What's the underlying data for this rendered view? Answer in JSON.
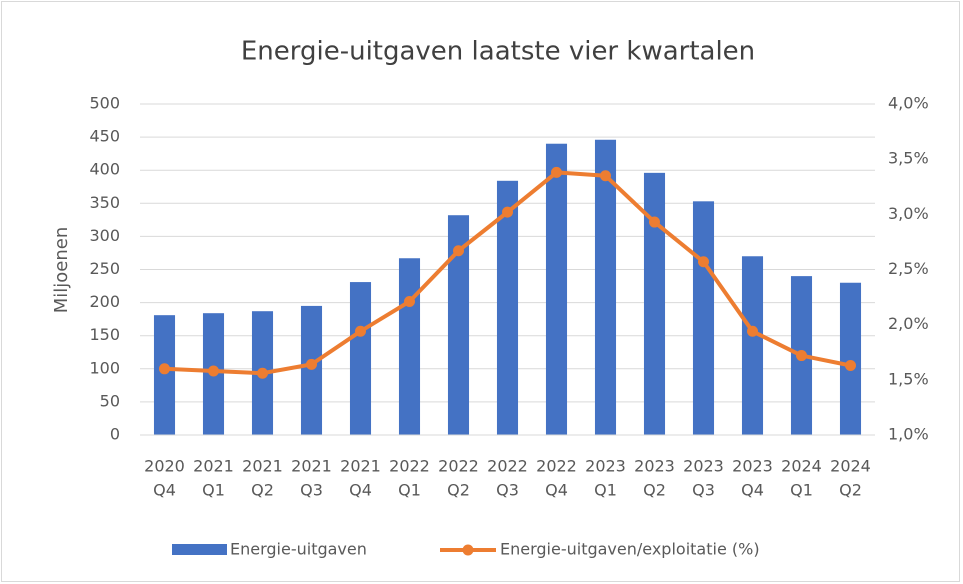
{
  "chart_data": {
    "type": "bar_line",
    "title": "Energie-uitgaven laatste vier kwartalen",
    "ylabel": "Miljoenen",
    "categories": [
      [
        "2020",
        "Q4"
      ],
      [
        "2021",
        "Q1"
      ],
      [
        "2021",
        "Q2"
      ],
      [
        "2021",
        "Q3"
      ],
      [
        "2021",
        "Q4"
      ],
      [
        "2022",
        "Q1"
      ],
      [
        "2022",
        "Q2"
      ],
      [
        "2022",
        "Q3"
      ],
      [
        "2022",
        "Q4"
      ],
      [
        "2023",
        "Q1"
      ],
      [
        "2023",
        "Q2"
      ],
      [
        "2023",
        "Q3"
      ],
      [
        "2023",
        "Q4"
      ],
      [
        "2024",
        "Q1"
      ],
      [
        "2024",
        "Q2"
      ]
    ],
    "series": [
      {
        "name": "Energie-uitgaven",
        "type": "bar",
        "color": "#4472c4",
        "values": [
          181,
          184,
          187,
          195,
          231,
          267,
          332,
          384,
          440,
          446,
          396,
          353,
          270,
          240,
          230
        ]
      },
      {
        "name": "Energie-uitgaven/exploitatie (%)",
        "type": "line",
        "axis": "y2",
        "color": "#ed7d31",
        "values": [
          1.6,
          1.58,
          1.56,
          1.64,
          1.94,
          2.21,
          2.67,
          3.02,
          3.38,
          3.35,
          2.93,
          2.57,
          1.94,
          1.72,
          1.63
        ]
      }
    ],
    "ylim": [
      0,
      500
    ],
    "yticks": [
      0,
      50,
      100,
      150,
      200,
      250,
      300,
      350,
      400,
      450,
      500
    ],
    "y2lim": [
      1.0,
      4.0
    ],
    "y2ticks": [
      {
        "value": 1.0,
        "label": "1,0%"
      },
      {
        "value": 1.5,
        "label": "1,5%"
      },
      {
        "value": 2.0,
        "label": "2,0%"
      },
      {
        "value": 2.5,
        "label": "2,5%"
      },
      {
        "value": 3.0,
        "label": "3,0%"
      },
      {
        "value": 3.5,
        "label": "3,5%"
      },
      {
        "value": 4.0,
        "label": "4,0%"
      }
    ],
    "grid": true,
    "legend": "bottom"
  }
}
